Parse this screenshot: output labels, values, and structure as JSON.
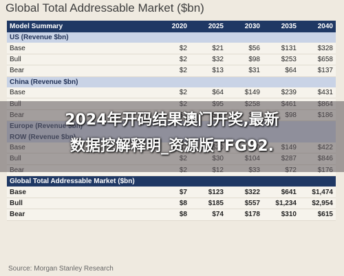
{
  "title": "Global Total Addressable Market ($bn)",
  "table": {
    "header": [
      "Model Summary",
      "2020",
      "2025",
      "2030",
      "2035",
      "2040"
    ],
    "sections": [
      {
        "label": "US (Revenue $bn)",
        "rows": [
          [
            "Base",
            "$2",
            "$21",
            "$56",
            "$131",
            "$328"
          ],
          [
            "Bull",
            "$2",
            "$32",
            "$98",
            "$253",
            "$658"
          ],
          [
            "Bear",
            "$2",
            "$13",
            "$31",
            "$64",
            "$137"
          ]
        ]
      },
      {
        "label": "China (Revenue $bn)",
        "rows": [
          [
            "Base",
            "$2",
            "$64",
            "$149",
            "$239",
            "$431"
          ],
          [
            "Bull",
            "$2",
            "$95",
            "$258",
            "$461",
            "$864"
          ],
          [
            "Bear",
            "$2",
            "$35",
            "$66",
            "$98",
            "$186"
          ]
        ]
      },
      {
        "label": "Europe (Revenue $bn)",
        "rows": []
      },
      {
        "label": "ROW (Revenue $bn)",
        "rows": [
          [
            "Base",
            "$2",
            "$20",
            "$60",
            "$149",
            "$422"
          ],
          [
            "Bull",
            "$2",
            "$30",
            "$104",
            "$287",
            "$846"
          ],
          [
            "Bear",
            "$2",
            "$12",
            "$33",
            "$72",
            "$176"
          ]
        ]
      },
      {
        "label": "Global Total Addressable Market ($bn)",
        "total": true,
        "rows": [
          [
            "Base",
            "$7",
            "$123",
            "$322",
            "$641",
            "$1,474"
          ],
          [
            "Bull",
            "$8",
            "$185",
            "$557",
            "$1,234",
            "$2,954"
          ],
          [
            "Bear",
            "$8",
            "$74",
            "$178",
            "$310",
            "$615"
          ]
        ]
      }
    ]
  },
  "source": "Source: Morgan Stanley Research",
  "overlay": {
    "line1": "2024年开码结果澳门开奖,最新",
    "line2": "数据挖解释明_资源版TFG92."
  }
}
